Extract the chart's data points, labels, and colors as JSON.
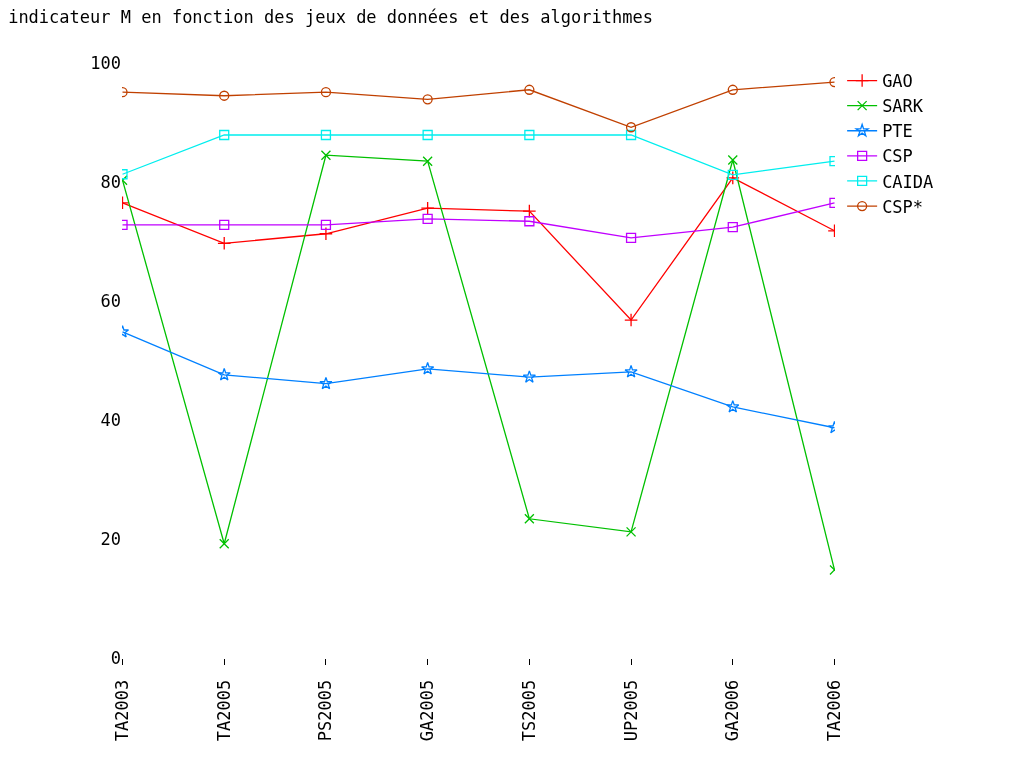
{
  "chart_data": {
    "type": "line",
    "title": "indicateur M en fonction des jeux de données et des algorithmes",
    "categories": [
      "TA2003",
      "TA2005",
      "PS2005",
      "GA2005",
      "TS2005",
      "UP2005",
      "GA2006",
      "TA2006"
    ],
    "ylim": [
      0,
      100
    ],
    "yticks": [
      0,
      20,
      40,
      60,
      80,
      100
    ],
    "legend": "top right",
    "line_style": "solid",
    "series": [
      {
        "name": "GAO",
        "color": "#ff0000",
        "marker": "cross",
        "values": [
          76.5,
          69.7,
          71.3,
          75.6,
          75.1,
          56.8,
          80.7,
          71.8
        ]
      },
      {
        "name": "SARK",
        "color": "#00c000",
        "marker": "x",
        "values": [
          80.3,
          19.2,
          84.5,
          83.5,
          23.4,
          21.2,
          83.7,
          14.8
        ]
      },
      {
        "name": "PTE",
        "color": "#0080ff",
        "marker": "star",
        "values": [
          54.8,
          47.6,
          46.1,
          48.6,
          47.2,
          48.1,
          42.2,
          38.7
        ]
      },
      {
        "name": "CSP",
        "color": "#c000ff",
        "marker": "square",
        "values": [
          72.8,
          72.8,
          72.8,
          73.8,
          73.4,
          70.6,
          72.4,
          76.5
        ]
      },
      {
        "name": "CAIDA",
        "color": "#00eeee",
        "marker": "square",
        "values": [
          81.3,
          87.9,
          87.9,
          87.9,
          87.9,
          87.9,
          81.2,
          83.5
        ]
      },
      {
        "name": "CSP*",
        "color": "#c04000",
        "marker": "circle",
        "values": [
          95.1,
          94.5,
          95.1,
          93.9,
          95.5,
          89.2,
          95.5,
          96.8
        ]
      }
    ]
  }
}
